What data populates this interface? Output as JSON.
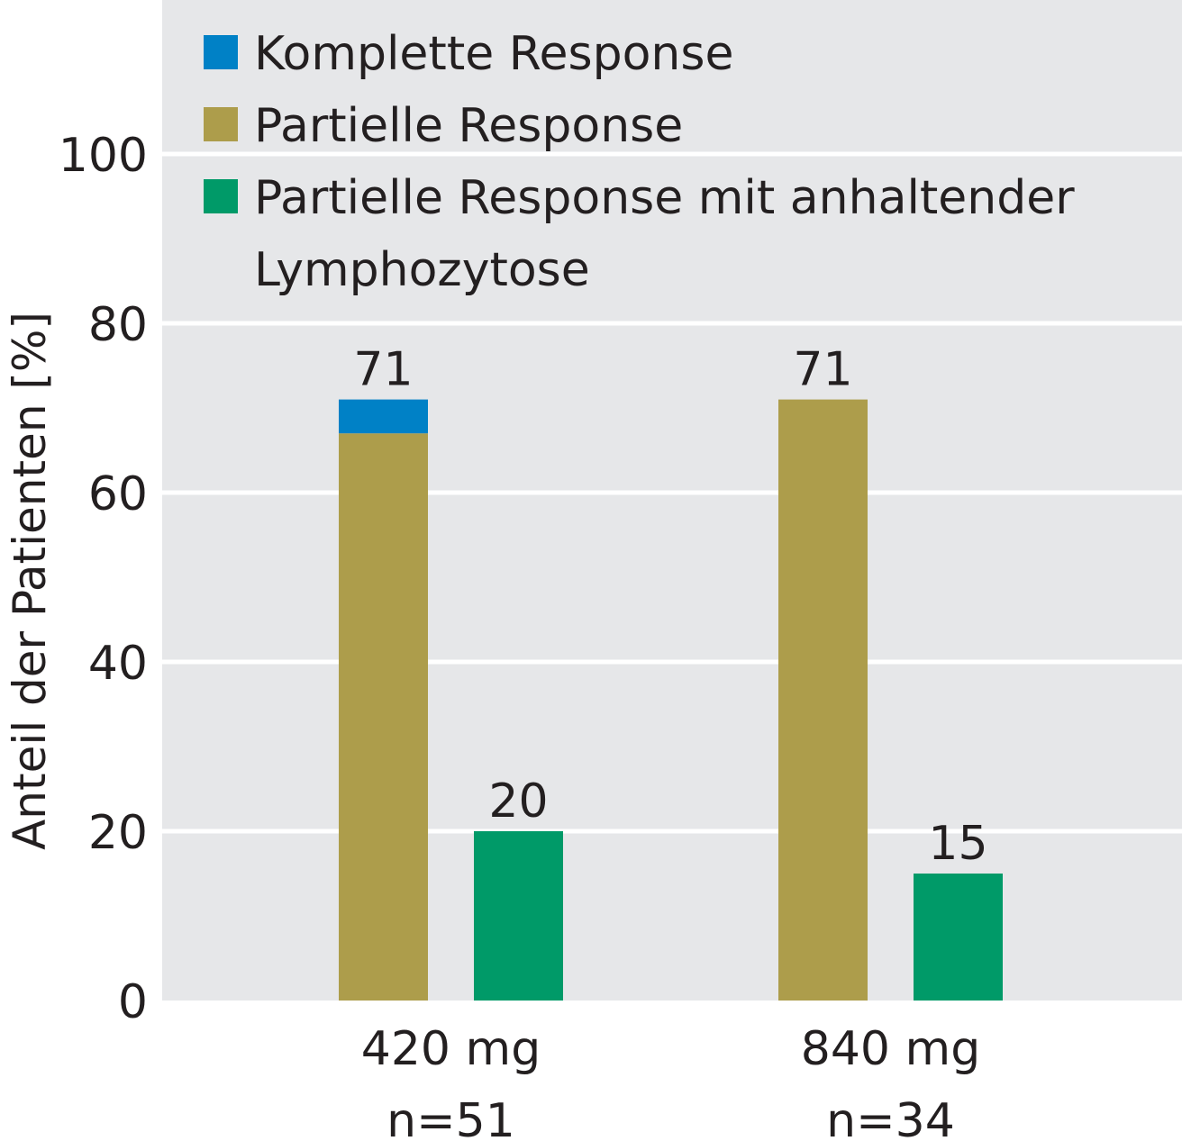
{
  "chart_data": {
    "type": "bar",
    "ylabel": "Anteil der Patienten [%]",
    "ylim": [
      0,
      100
    ],
    "yticks": [
      0,
      20,
      40,
      60,
      80,
      100
    ],
    "grid": true,
    "legend_position": "top-left",
    "groups": [
      {
        "label": "420 mg",
        "sublabel": "n=51"
      },
      {
        "label": "840 mg",
        "sublabel": "n=34"
      }
    ],
    "series": [
      {
        "name": "Komplette Response",
        "color": "#0081c6",
        "values": [
          4,
          0
        ]
      },
      {
        "name": "Partielle Response",
        "color": "#ad9d4b",
        "values": [
          67,
          71
        ]
      },
      {
        "name": "Partielle Response mit anhaltender Lymphozytose",
        "color": "#009a68",
        "values": [
          20,
          15
        ]
      }
    ],
    "bar_totals": [
      {
        "group": 0,
        "bar": "response",
        "value": "71"
      },
      {
        "group": 0,
        "bar": "lymphozytose",
        "value": "20"
      },
      {
        "group": 1,
        "bar": "response",
        "value": "71"
      },
      {
        "group": 1,
        "bar": "lymphozytose",
        "value": "15"
      }
    ],
    "legend_lines": [
      [
        "Komplette Response"
      ],
      [
        "Partielle Response"
      ],
      [
        "Partielle Response mit anhaltender",
        "Lymphozytose"
      ]
    ]
  }
}
